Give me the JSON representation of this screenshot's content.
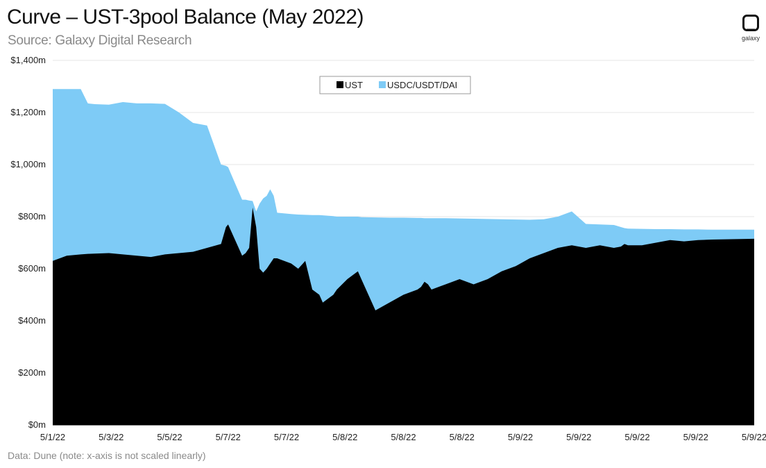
{
  "header": {
    "title": "Curve – UST-3pool Balance (May 2022)",
    "subtitle": "Source: Galaxy Digital Research"
  },
  "footer": {
    "note": "Data: Dune (note: x-axis is not scaled linearly)"
  },
  "logo": {
    "icon": "galaxy-logo-icon",
    "text": "galaxy"
  },
  "colors": {
    "ust": "#000000",
    "pool3": "#7ecbf6",
    "grid": "#e6e6e6"
  },
  "chart_data": {
    "type": "area",
    "stacked": false,
    "title": "Curve – UST-3pool Balance (May 2022)",
    "xlabel": "",
    "ylabel": "",
    "ylim": [
      0,
      1400
    ],
    "y_unit": "m",
    "y_ticks": [
      "$0m",
      "$200m",
      "$400m",
      "$600m",
      "$800m",
      "$1,000m",
      "$1,200m",
      "$1,400m"
    ],
    "x_ticks": [
      "5/1/22",
      "5/3/22",
      "5/5/22",
      "5/7/22",
      "5/7/22",
      "5/8/22",
      "5/8/22",
      "5/8/22",
      "5/9/22",
      "5/9/22",
      "5/9/22",
      "5/9/22",
      "5/9/22"
    ],
    "x_scale_note": "x-axis is not scaled linearly (index positions 0-100 span the tick range)",
    "grid": true,
    "legend": "top-center",
    "x": [
      0,
      2,
      4,
      5,
      6,
      8,
      10,
      12,
      14,
      16,
      18,
      20,
      22,
      24,
      24.7,
      25,
      27,
      27.5,
      28,
      28.5,
      29,
      29.5,
      30,
      30.5,
      31,
      31.5,
      32,
      34,
      35,
      36,
      37,
      38,
      38.5,
      40,
      40.5,
      42,
      43,
      43.5,
      44,
      46,
      48,
      50,
      52,
      52.5,
      53,
      53.5,
      54,
      56,
      58,
      60,
      62,
      64,
      66,
      68,
      70,
      72,
      74,
      76,
      78,
      80,
      81,
      81.5,
      82,
      84,
      86,
      88,
      90,
      92,
      94,
      96,
      98,
      100
    ],
    "series": [
      {
        "name": "UST",
        "color": "#000000",
        "values": [
          630,
          650,
          655,
          657,
          658,
          660,
          655,
          650,
          645,
          655,
          660,
          665,
          680,
          695,
          760,
          770,
          650,
          660,
          680,
          835,
          760,
          600,
          585,
          600,
          620,
          640,
          640,
          620,
          600,
          630,
          520,
          500,
          470,
          500,
          520,
          560,
          580,
          590,
          560,
          440,
          470,
          500,
          520,
          530,
          550,
          540,
          520,
          540,
          560,
          540,
          560,
          590,
          610,
          640,
          660,
          680,
          690,
          680,
          690,
          680,
          685,
          695,
          690,
          690,
          700,
          710,
          705,
          710,
          712,
          713,
          714,
          715
        ]
      },
      {
        "name": "USDC/USDT/DAI",
        "color": "#7ecbf6",
        "values": [
          1290,
          1290,
          1290,
          1235,
          1232,
          1230,
          1240,
          1235,
          1235,
          1233,
          1200,
          1160,
          1150,
          1000,
          995,
          990,
          865,
          865,
          862,
          860,
          820,
          850,
          870,
          880,
          905,
          880,
          815,
          810,
          808,
          807,
          806,
          806,
          805,
          802,
          800,
          800,
          800,
          800,
          798,
          797,
          796,
          796,
          795,
          795,
          794,
          794,
          794,
          794,
          793,
          792,
          791,
          790,
          789,
          788,
          790,
          800,
          820,
          772,
          770,
          768,
          760,
          756,
          754,
          753,
          752,
          752,
          751,
          751,
          750,
          750,
          750,
          750
        ]
      }
    ]
  }
}
